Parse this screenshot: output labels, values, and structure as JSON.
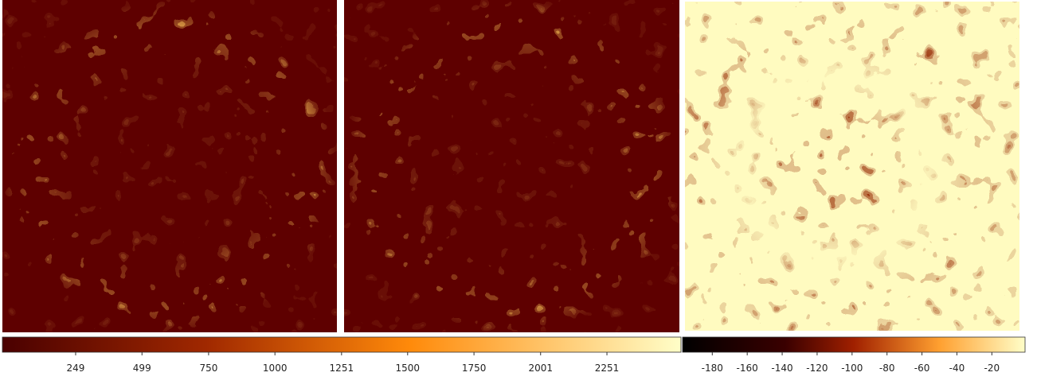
{
  "colorbars": [
    {
      "lim": [
        -27,
        2530
      ],
      "ticks": [
        249,
        499,
        750,
        1000,
        1251,
        1500,
        1750,
        2001,
        2251
      ]
    },
    {
      "lim": [
        -197,
        -1
      ],
      "ticks": [
        -180,
        -160,
        -140,
        -120,
        -100,
        -80,
        -60,
        -40,
        -20
      ]
    }
  ]
}
